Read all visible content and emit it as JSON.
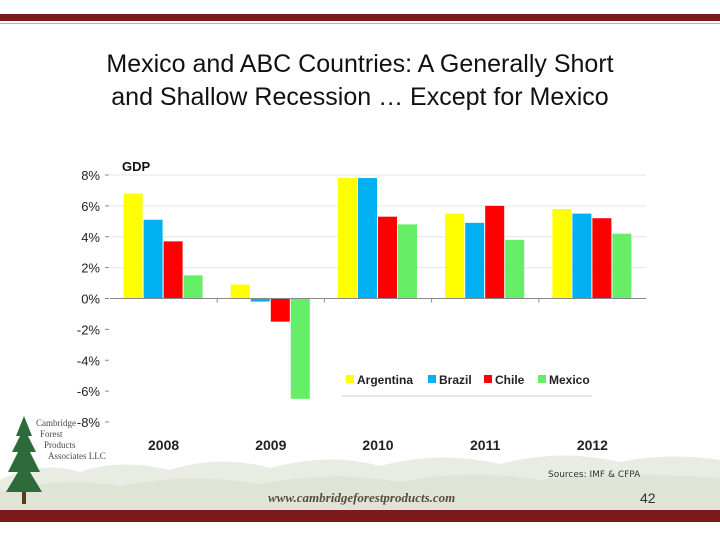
{
  "slide": {
    "title_line1": "Mexico and ABC Countries: A Generally Short",
    "title_line2": "and Shallow Recession … Except for Mexico",
    "sources": "Sources: IMF & CFPA",
    "page_number": "42",
    "website": "www.cambridgeforestproducts.com",
    "logo_lines": [
      "Cambridge",
      "Forest",
      "Products",
      "Associates LLC"
    ]
  },
  "colors": {
    "bar_top": "#7a1a1a",
    "Argentina": "#ffff00",
    "Brazil": "#00b0f0",
    "Chile": "#ff0000",
    "Mexico": "#66ee66",
    "tree": "#2e6b3a"
  },
  "chart_data": {
    "type": "bar",
    "title": "GDP",
    "xlabel": "",
    "ylabel": "",
    "categories": [
      "2008",
      "2009",
      "2010",
      "2011",
      "2012"
    ],
    "series": [
      {
        "name": "Argentina",
        "values": [
          6.8,
          0.9,
          7.8,
          5.5,
          5.8
        ]
      },
      {
        "name": "Brazil",
        "values": [
          5.1,
          -0.2,
          7.8,
          4.9,
          5.5
        ]
      },
      {
        "name": "Chile",
        "values": [
          3.7,
          -1.5,
          5.3,
          6.0,
          5.2
        ]
      },
      {
        "name": "Mexico",
        "values": [
          1.5,
          -6.5,
          4.8,
          3.8,
          4.2
        ]
      }
    ],
    "ylim": [
      -8,
      8
    ],
    "yticks": [
      8,
      6,
      4,
      2,
      0,
      -2,
      -4,
      -6,
      -8
    ],
    "ytick_labels": [
      "8%",
      "6%",
      "4%",
      "2%",
      "0%",
      "-2%",
      "-4%",
      "-6%",
      "-8%"
    ],
    "grid": true,
    "legend_position": "lower-right"
  }
}
